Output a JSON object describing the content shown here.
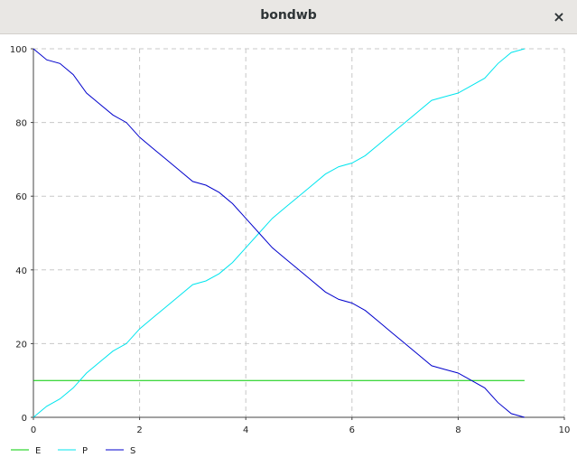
{
  "window": {
    "title": "bondwb",
    "close_glyph": "×"
  },
  "colors": {
    "E": "#00cc00",
    "P": "#00e5ee",
    "S": "#0000cc",
    "grid": "#c8c8c8",
    "axis": "#444444"
  },
  "chart_data": {
    "type": "line",
    "title": "",
    "xlabel": "",
    "ylabel": "",
    "xlim": [
      0,
      10
    ],
    "ylim": [
      0,
      100
    ],
    "xticks": [
      0,
      2,
      4,
      6,
      8,
      10
    ],
    "yticks": [
      0,
      20,
      40,
      60,
      80,
      100
    ],
    "grid": true,
    "legend_position": "bottom-left",
    "series": [
      {
        "name": "E",
        "color": "#00cc00",
        "x": [
          0,
          9.25
        ],
        "y": [
          10,
          10
        ]
      },
      {
        "name": "P",
        "color": "#00e5ee",
        "x": [
          0,
          0.25,
          0.5,
          0.75,
          1.0,
          1.25,
          1.5,
          1.75,
          2.0,
          2.25,
          2.5,
          2.75,
          3.0,
          3.25,
          3.5,
          3.75,
          4.0,
          4.25,
          4.5,
          4.75,
          5.0,
          5.25,
          5.5,
          5.75,
          6.0,
          6.25,
          6.5,
          6.75,
          7.0,
          7.25,
          7.5,
          7.75,
          8.0,
          8.25,
          8.5,
          8.75,
          9.0,
          9.25
        ],
        "y": [
          0,
          3,
          5,
          8,
          12,
          15,
          18,
          20,
          24,
          27,
          30,
          33,
          36,
          37,
          39,
          42,
          46,
          50,
          54,
          57,
          60,
          63,
          66,
          68,
          69,
          71,
          74,
          77,
          80,
          83,
          86,
          87,
          88,
          90,
          92,
          96,
          99,
          100
        ]
      },
      {
        "name": "S",
        "color": "#0000cc",
        "x": [
          0,
          0.25,
          0.5,
          0.75,
          1.0,
          1.25,
          1.5,
          1.75,
          2.0,
          2.25,
          2.5,
          2.75,
          3.0,
          3.25,
          3.5,
          3.75,
          4.0,
          4.25,
          4.5,
          4.75,
          5.0,
          5.25,
          5.5,
          5.75,
          6.0,
          6.25,
          6.5,
          6.75,
          7.0,
          7.25,
          7.5,
          7.75,
          8.0,
          8.25,
          8.5,
          8.75,
          9.0,
          9.25
        ],
        "y": [
          100,
          97,
          96,
          93,
          88,
          85,
          82,
          80,
          76,
          73,
          70,
          67,
          64,
          63,
          61,
          58,
          54,
          50,
          46,
          43,
          40,
          37,
          34,
          32,
          31,
          29,
          26,
          23,
          20,
          17,
          14,
          13,
          12,
          10,
          8,
          4,
          1,
          0
        ]
      }
    ]
  }
}
